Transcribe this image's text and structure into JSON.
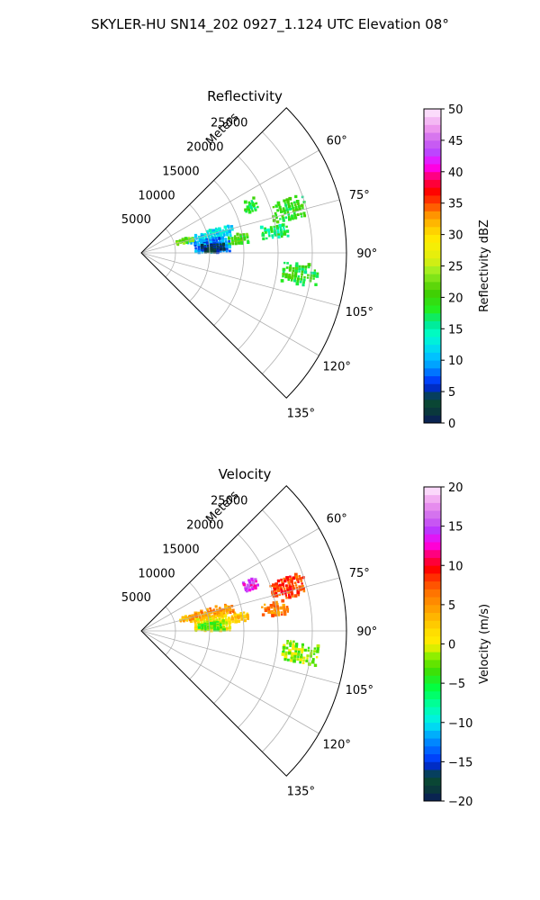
{
  "suptitle": "SKYLER-HU  SN14_202  0927_1.124 UTC Elevation 08°",
  "chart_data": [
    {
      "type": "polar-sector",
      "title": "Reflectivity",
      "radial_label": "Meters",
      "theta_range_deg": [
        45,
        135
      ],
      "r_max": 30000,
      "radial_ticks": [
        5000,
        10000,
        15000,
        20000,
        25000
      ],
      "radial_tick_labels": [
        "5000",
        "10000",
        "15000",
        "20000",
        "25000"
      ],
      "theta_ticks": [
        60,
        75,
        90,
        105,
        120,
        135
      ],
      "theta_tick_labels": [
        "60°",
        "75°",
        "90°",
        "105°",
        "120°",
        "135°"
      ],
      "grid": true,
      "colorbar": {
        "label": "Reflectivity dBZ",
        "min": 0,
        "max": 50,
        "ticks": [
          0,
          5,
          10,
          15,
          20,
          25,
          30,
          35,
          40,
          45,
          50
        ],
        "tick_labels": [
          "0",
          "5",
          "10",
          "15",
          "20",
          "25",
          "30",
          "35",
          "40",
          "45",
          "50"
        ]
      },
      "echo_regions": [
        {
          "az_range": [
            64,
            70
          ],
          "range_m": [
            16500,
            18500
          ],
          "value": 18
        },
        {
          "az_range": [
            70,
            78
          ],
          "range_m": [
            20000,
            25000
          ],
          "value": 19
        },
        {
          "az_range": [
            78,
            84
          ],
          "range_m": [
            18000,
            22000
          ],
          "value": 17
        },
        {
          "az_range": [
            79,
            85
          ],
          "range_m": [
            13000,
            16000
          ],
          "value": 20
        },
        {
          "az_range": [
            72,
            80
          ],
          "range_m": [
            7000,
            14000
          ],
          "value": 12
        },
        {
          "az_range": [
            78,
            90
          ],
          "range_m": [
            8000,
            13000
          ],
          "value": 9
        },
        {
          "az_range": [
            83,
            90
          ],
          "range_m": [
            8500,
            12500
          ],
          "value": 3
        },
        {
          "az_range": [
            72,
            78
          ],
          "range_m": [
            5500,
            8000
          ],
          "value": 22
        },
        {
          "az_range": [
            94,
            102
          ],
          "range_m": [
            21000,
            26000
          ],
          "value": 19
        }
      ]
    },
    {
      "type": "polar-sector",
      "title": "Velocity",
      "radial_label": "Meters",
      "theta_range_deg": [
        45,
        135
      ],
      "r_max": 30000,
      "radial_ticks": [
        5000,
        10000,
        15000,
        20000,
        25000
      ],
      "radial_tick_labels": [
        "5000",
        "10000",
        "15000",
        "20000",
        "25000"
      ],
      "theta_ticks": [
        60,
        75,
        90,
        105,
        120,
        135
      ],
      "theta_tick_labels": [
        "60°",
        "75°",
        "90°",
        "105°",
        "120°",
        "135°"
      ],
      "grid": true,
      "colorbar": {
        "label": "Velocity (m/s)",
        "min": -20,
        "max": 20,
        "ticks": [
          -20,
          -15,
          -10,
          -5,
          0,
          5,
          10,
          15,
          20
        ],
        "tick_labels": [
          "−20",
          "−15",
          "−10",
          "−5",
          "0",
          "5",
          "10",
          "15",
          "20"
        ]
      },
      "echo_regions": [
        {
          "az_range": [
            64,
            70
          ],
          "range_m": [
            16500,
            18500
          ],
          "value": 14
        },
        {
          "az_range": [
            70,
            78
          ],
          "range_m": [
            20000,
            25000
          ],
          "value": 8
        },
        {
          "az_range": [
            78,
            84
          ],
          "range_m": [
            18000,
            22000
          ],
          "value": 6
        },
        {
          "az_range": [
            79,
            85
          ],
          "range_m": [
            13000,
            16000
          ],
          "value": 2
        },
        {
          "az_range": [
            72,
            80
          ],
          "range_m": [
            7000,
            14000
          ],
          "value": 5
        },
        {
          "az_range": [
            78,
            90
          ],
          "range_m": [
            8000,
            13000
          ],
          "value": 1
        },
        {
          "az_range": [
            83,
            90
          ],
          "range_m": [
            8500,
            12500
          ],
          "value": -3
        },
        {
          "az_range": [
            72,
            78
          ],
          "range_m": [
            5500,
            8000
          ],
          "value": 4
        },
        {
          "az_range": [
            94,
            102
          ],
          "range_m": [
            21000,
            26000
          ],
          "value": -2
        }
      ]
    }
  ]
}
